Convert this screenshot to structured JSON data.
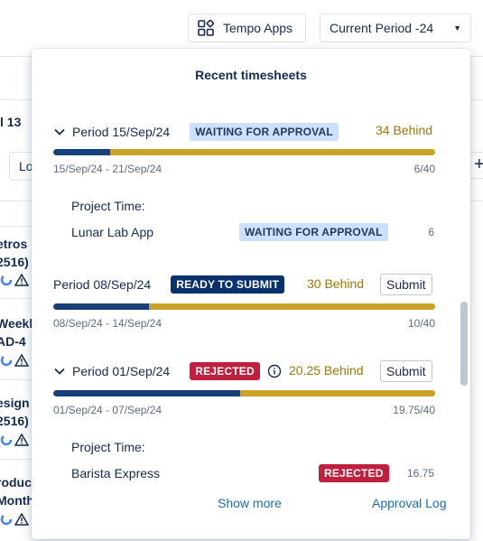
{
  "topbar": {
    "apps_label": "Tempo Apps",
    "period_select": "Current Period -24"
  },
  "background": {
    "num": "l 13",
    "tab": "Lo",
    "cards": [
      "etros",
      "2516)",
      "Weekl",
      "AD-4",
      "esign",
      "2516)",
      "roduc",
      "Month"
    ]
  },
  "panel": {
    "title": "Recent timesheets",
    "periods": [
      {
        "label": "Period 15/Sep/24",
        "status": "WAITING FOR APPROVAL",
        "behind": "34 Behind",
        "progress": 0.15,
        "date_range": "15/Sep/24 - 21/Sep/24",
        "ratio": "6/40",
        "project_time_label": "Project Time:",
        "project": {
          "name": "Lunar Lab App",
          "status": "WAITING FOR APPROVAL",
          "hours": "6"
        }
      },
      {
        "label": "Period 08/Sep/24",
        "status": "READY TO SUBMIT",
        "behind": "30 Behind",
        "submit": "Submit",
        "progress": 0.25,
        "date_range": "08/Sep/24 - 14/Sep/24",
        "ratio": "10/40"
      },
      {
        "label": "Period 01/Sep/24",
        "status": "REJECTED",
        "behind": "20.25 Behind",
        "submit": "Submit",
        "progress": 0.49,
        "date_range": "01/Sep/24 - 07/Sep/24",
        "ratio": "19.75/40",
        "project_time_label": "Project Time:",
        "project": {
          "name": "Barista Express",
          "status": "REJECTED",
          "hours": "16.75"
        }
      }
    ],
    "show_more": "Show more",
    "approval_log": "Approval Log"
  }
}
